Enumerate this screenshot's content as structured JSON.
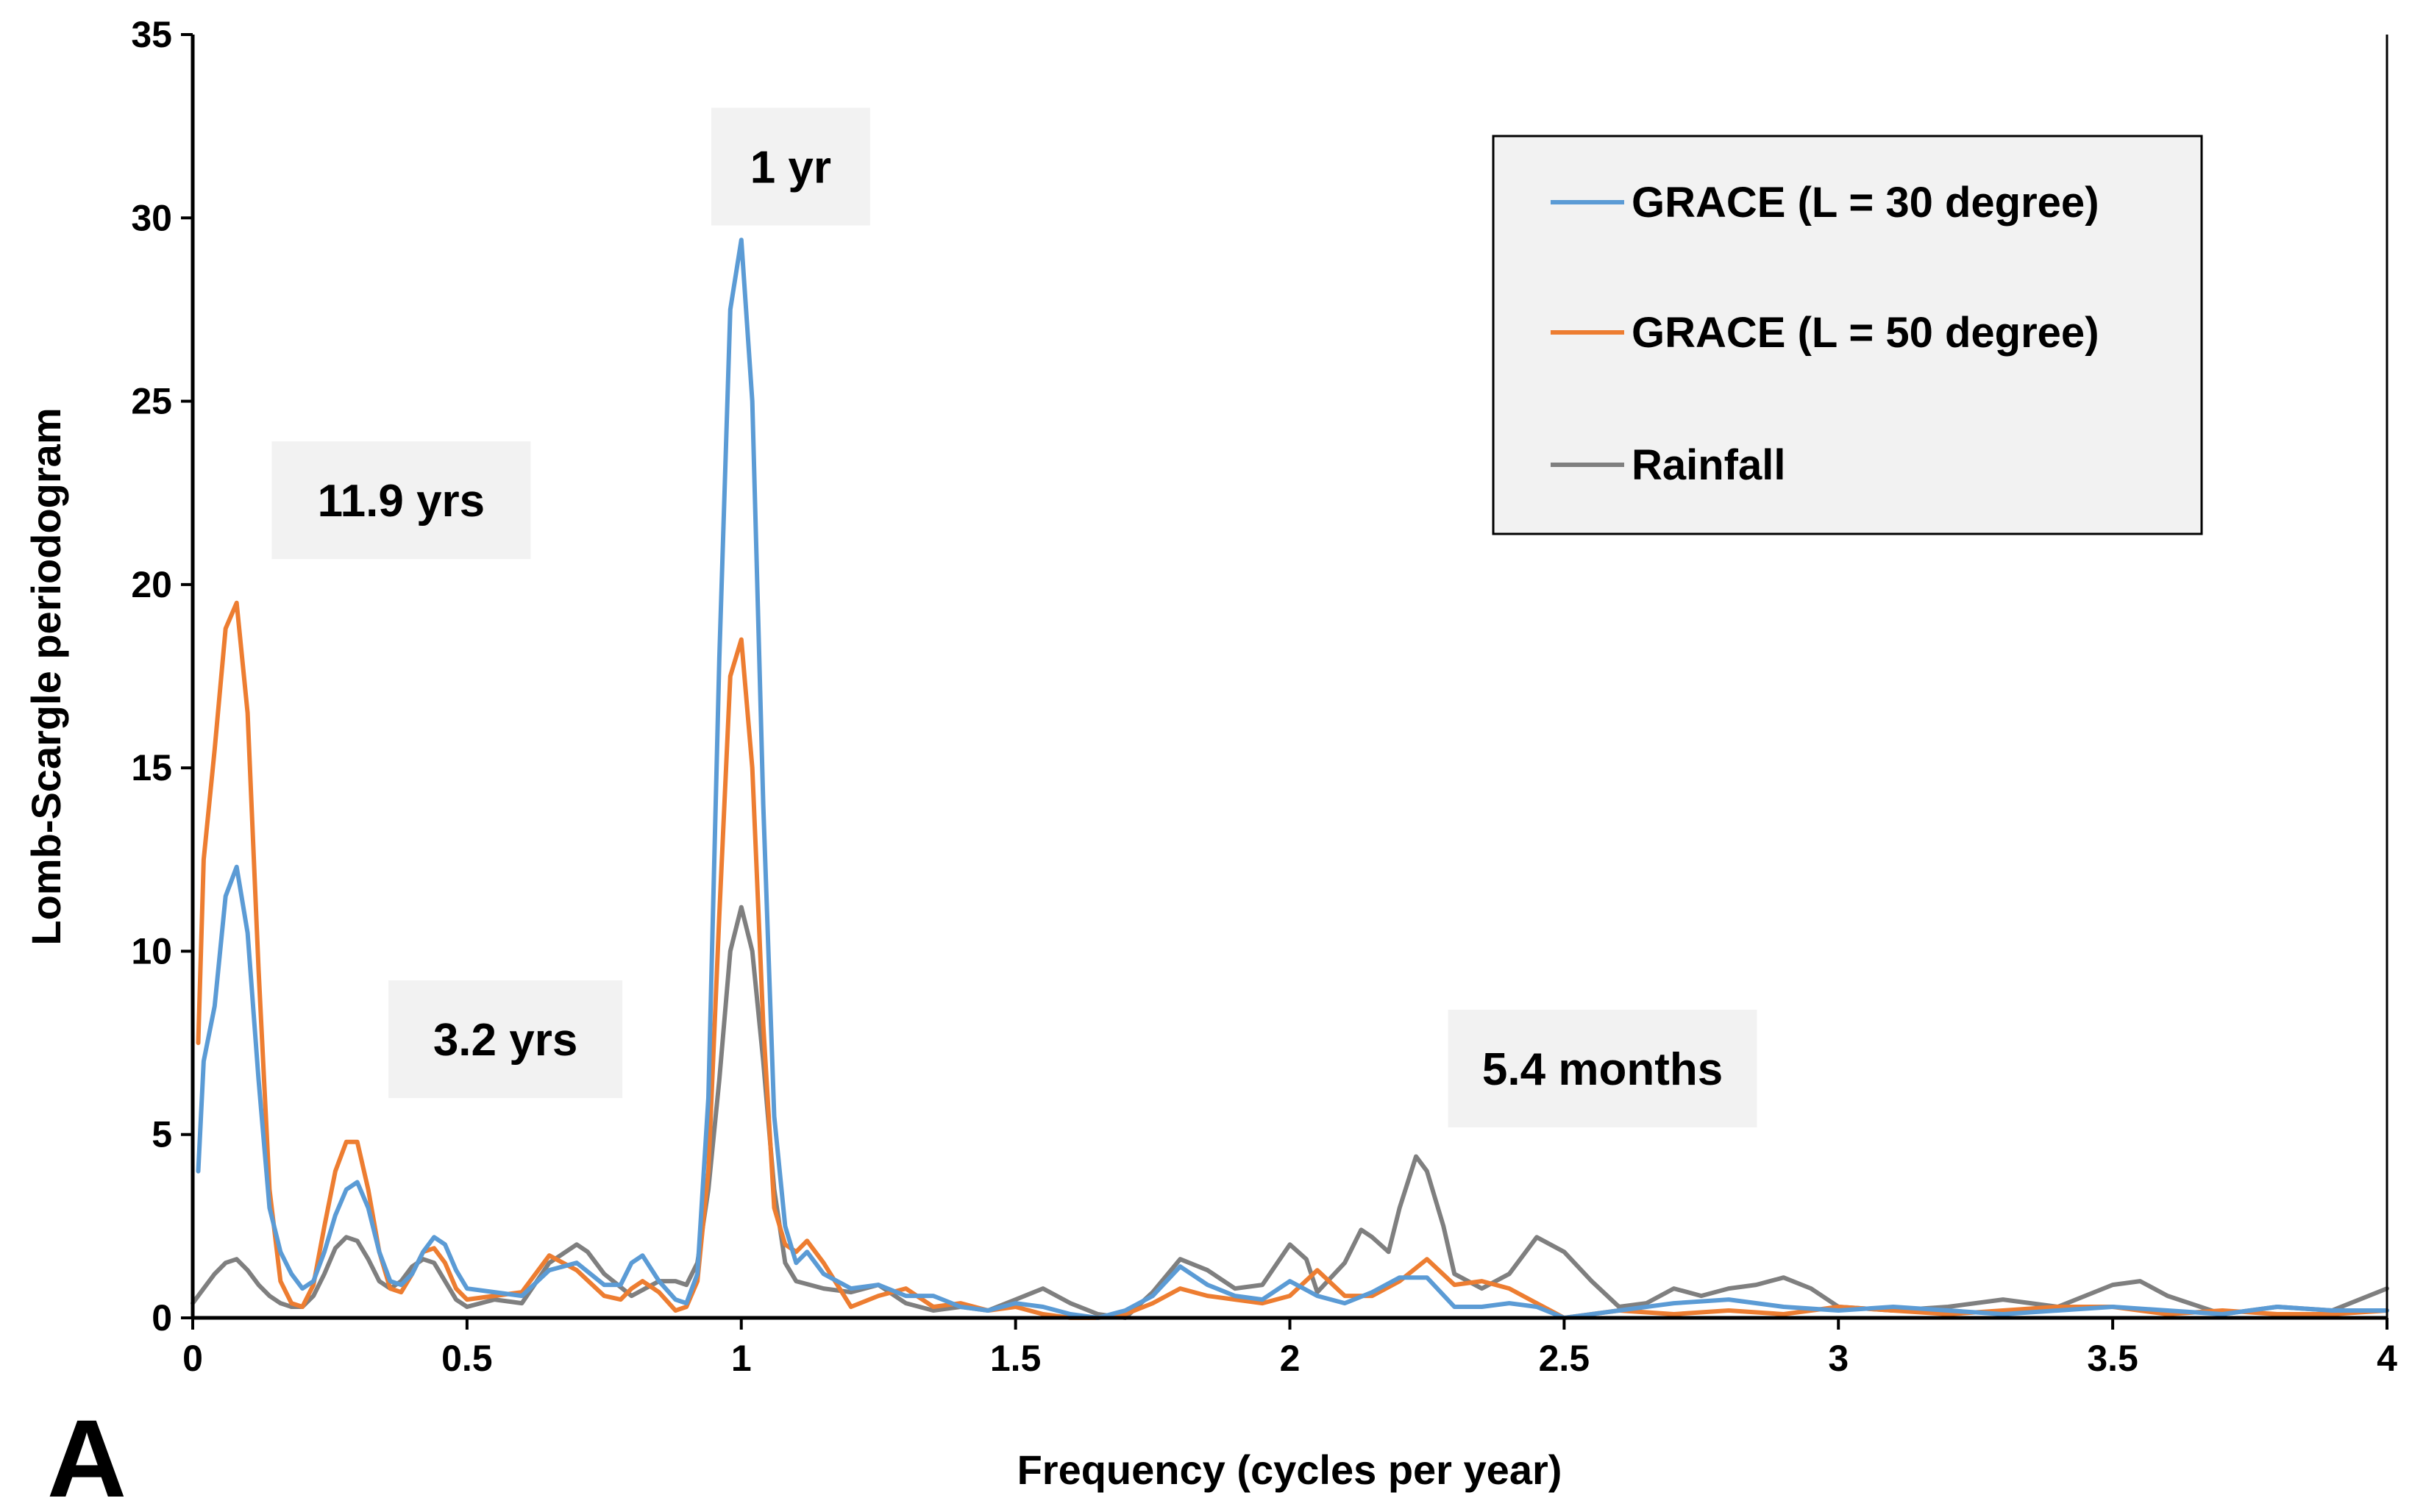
{
  "chart_data": {
    "type": "line",
    "panel_label": "A",
    "xlabel": "Frequency (cycles per year)",
    "ylabel": "Lomb-Scargle periodogram",
    "xlim": [
      0,
      4
    ],
    "ylim": [
      0,
      35
    ],
    "xticks": [
      {
        "value": 0,
        "label": "0"
      },
      {
        "value": 0.5,
        "label": "0.5"
      },
      {
        "value": 1,
        "label": "1"
      },
      {
        "value": 1.5,
        "label": "1.5"
      },
      {
        "value": 2,
        "label": "2"
      },
      {
        "value": 2.5,
        "label": "2.5"
      },
      {
        "value": 3,
        "label": "3"
      },
      {
        "value": 3.5,
        "label": "3.5"
      },
      {
        "value": 4,
        "label": "4"
      }
    ],
    "yticks": [
      {
        "value": 0,
        "label": "0"
      },
      {
        "value": 5,
        "label": "5"
      },
      {
        "value": 10,
        "label": "10"
      },
      {
        "value": 15,
        "label": "15"
      },
      {
        "value": 20,
        "label": "20"
      },
      {
        "value": 25,
        "label": "25"
      },
      {
        "value": 30,
        "label": "30"
      },
      {
        "value": 35,
        "label": "35"
      }
    ],
    "grid": false,
    "legend_position": "top-right",
    "series": [
      {
        "name": "GRACE (L = 30 degree)",
        "color": "#5B9BD5",
        "x": [
          0.01,
          0.02,
          0.04,
          0.06,
          0.08,
          0.1,
          0.12,
          0.14,
          0.16,
          0.18,
          0.2,
          0.22,
          0.24,
          0.26,
          0.28,
          0.3,
          0.32,
          0.34,
          0.36,
          0.38,
          0.4,
          0.42,
          0.44,
          0.46,
          0.48,
          0.5,
          0.55,
          0.6,
          0.65,
          0.7,
          0.75,
          0.78,
          0.8,
          0.82,
          0.85,
          0.88,
          0.9,
          0.92,
          0.94,
          0.96,
          0.98,
          1.0,
          1.02,
          1.04,
          1.06,
          1.08,
          1.1,
          1.12,
          1.15,
          1.2,
          1.25,
          1.3,
          1.35,
          1.4,
          1.45,
          1.5,
          1.55,
          1.6,
          1.65,
          1.7,
          1.75,
          1.8,
          1.85,
          1.9,
          1.95,
          2.0,
          2.05,
          2.1,
          2.15,
          2.2,
          2.25,
          2.3,
          2.35,
          2.4,
          2.45,
          2.5,
          2.6,
          2.7,
          2.8,
          2.9,
          3.0,
          3.1,
          3.2,
          3.3,
          3.4,
          3.5,
          3.6,
          3.7,
          3.8,
          3.9,
          4.0
        ],
        "values": [
          4.0,
          7.0,
          8.5,
          11.5,
          12.3,
          10.5,
          6.5,
          3.0,
          1.8,
          1.2,
          0.8,
          1.0,
          1.8,
          2.8,
          3.5,
          3.7,
          3.0,
          1.8,
          1.0,
          0.9,
          1.2,
          1.8,
          2.2,
          2.0,
          1.3,
          0.8,
          0.7,
          0.6,
          1.3,
          1.5,
          0.9,
          0.9,
          1.5,
          1.7,
          1.0,
          0.5,
          0.4,
          1.2,
          6.0,
          18.0,
          27.5,
          29.4,
          25.0,
          14.0,
          5.5,
          2.5,
          1.5,
          1.8,
          1.2,
          0.8,
          0.9,
          0.6,
          0.6,
          0.3,
          0.2,
          0.4,
          0.3,
          0.1,
          0.0,
          0.2,
          0.6,
          1.4,
          0.9,
          0.6,
          0.5,
          1.0,
          0.6,
          0.4,
          0.7,
          1.1,
          1.1,
          0.3,
          0.3,
          0.4,
          0.3,
          0.0,
          0.2,
          0.4,
          0.5,
          0.3,
          0.2,
          0.3,
          0.2,
          0.1,
          0.2,
          0.3,
          0.2,
          0.1,
          0.3,
          0.2,
          0.2
        ]
      },
      {
        "name": "GRACE (L = 50 degree)",
        "color": "#ED7D31",
        "x": [
          0.01,
          0.02,
          0.04,
          0.06,
          0.08,
          0.1,
          0.12,
          0.14,
          0.16,
          0.18,
          0.2,
          0.22,
          0.24,
          0.26,
          0.28,
          0.3,
          0.32,
          0.34,
          0.36,
          0.38,
          0.4,
          0.42,
          0.44,
          0.46,
          0.48,
          0.5,
          0.55,
          0.6,
          0.65,
          0.7,
          0.75,
          0.78,
          0.8,
          0.82,
          0.85,
          0.88,
          0.9,
          0.92,
          0.94,
          0.96,
          0.98,
          1.0,
          1.02,
          1.04,
          1.06,
          1.08,
          1.1,
          1.12,
          1.15,
          1.2,
          1.25,
          1.3,
          1.35,
          1.4,
          1.45,
          1.5,
          1.55,
          1.6,
          1.65,
          1.7,
          1.75,
          1.8,
          1.85,
          1.9,
          1.95,
          2.0,
          2.05,
          2.1,
          2.15,
          2.2,
          2.25,
          2.3,
          2.35,
          2.4,
          2.45,
          2.5,
          2.6,
          2.7,
          2.8,
          2.9,
          3.0,
          3.1,
          3.2,
          3.3,
          3.4,
          3.5,
          3.6,
          3.7,
          3.8,
          3.9,
          4.0
        ],
        "values": [
          7.5,
          12.5,
          15.5,
          18.8,
          19.5,
          16.5,
          9.5,
          3.5,
          1.0,
          0.4,
          0.3,
          0.9,
          2.5,
          4.0,
          4.8,
          4.8,
          3.5,
          1.8,
          0.8,
          0.7,
          1.2,
          1.8,
          1.9,
          1.5,
          0.8,
          0.5,
          0.6,
          0.7,
          1.7,
          1.3,
          0.6,
          0.5,
          0.8,
          1.0,
          0.7,
          0.2,
          0.3,
          1.0,
          4.0,
          11.0,
          17.5,
          18.5,
          15.0,
          8.0,
          3.0,
          2.0,
          1.8,
          2.1,
          1.5,
          0.3,
          0.6,
          0.8,
          0.3,
          0.4,
          0.2,
          0.3,
          0.1,
          0.0,
          0.0,
          0.1,
          0.4,
          0.8,
          0.6,
          0.5,
          0.4,
          0.6,
          1.3,
          0.6,
          0.6,
          1.0,
          1.6,
          0.9,
          1.0,
          0.8,
          0.4,
          0.0,
          0.2,
          0.1,
          0.2,
          0.1,
          0.3,
          0.2,
          0.1,
          0.2,
          0.3,
          0.3,
          0.1,
          0.2,
          0.1,
          0.1,
          0.2
        ]
      },
      {
        "name": "Rainfall",
        "color": "#7F7F7F",
        "x": [
          0.0,
          0.02,
          0.04,
          0.06,
          0.08,
          0.1,
          0.12,
          0.14,
          0.16,
          0.18,
          0.2,
          0.22,
          0.24,
          0.26,
          0.28,
          0.3,
          0.32,
          0.34,
          0.36,
          0.38,
          0.4,
          0.42,
          0.44,
          0.46,
          0.48,
          0.5,
          0.55,
          0.6,
          0.65,
          0.7,
          0.72,
          0.75,
          0.8,
          0.85,
          0.88,
          0.9,
          0.92,
          0.94,
          0.96,
          0.98,
          1.0,
          1.02,
          1.04,
          1.06,
          1.08,
          1.1,
          1.15,
          1.2,
          1.25,
          1.3,
          1.35,
          1.4,
          1.45,
          1.5,
          1.55,
          1.6,
          1.65,
          1.7,
          1.75,
          1.8,
          1.85,
          1.9,
          1.95,
          2.0,
          2.03,
          2.05,
          2.1,
          2.13,
          2.15,
          2.18,
          2.2,
          2.23,
          2.25,
          2.28,
          2.3,
          2.35,
          2.4,
          2.45,
          2.5,
          2.55,
          2.6,
          2.65,
          2.7,
          2.75,
          2.8,
          2.85,
          2.9,
          2.95,
          3.0,
          3.1,
          3.2,
          3.3,
          3.4,
          3.5,
          3.55,
          3.6,
          3.7,
          3.8,
          3.9,
          4.0
        ],
        "values": [
          0.4,
          0.8,
          1.2,
          1.5,
          1.6,
          1.3,
          0.9,
          0.6,
          0.4,
          0.3,
          0.3,
          0.6,
          1.2,
          1.9,
          2.2,
          2.1,
          1.6,
          1.0,
          0.8,
          1.0,
          1.4,
          1.6,
          1.5,
          1.0,
          0.5,
          0.3,
          0.5,
          0.4,
          1.5,
          2.0,
          1.8,
          1.2,
          0.6,
          1.0,
          1.0,
          0.9,
          1.5,
          3.5,
          6.5,
          10.0,
          11.2,
          10.0,
          7.0,
          3.5,
          1.5,
          1.0,
          0.8,
          0.7,
          0.9,
          0.4,
          0.2,
          0.3,
          0.2,
          0.5,
          0.8,
          0.4,
          0.1,
          0.0,
          0.7,
          1.6,
          1.3,
          0.8,
          0.9,
          2.0,
          1.6,
          0.7,
          1.5,
          2.4,
          2.2,
          1.8,
          3.0,
          4.4,
          4.0,
          2.5,
          1.2,
          0.8,
          1.2,
          2.2,
          1.8,
          1.0,
          0.3,
          0.4,
          0.8,
          0.6,
          0.8,
          0.9,
          1.1,
          0.8,
          0.3,
          0.2,
          0.3,
          0.5,
          0.3,
          0.9,
          1.0,
          0.6,
          0.1,
          0.3,
          0.2,
          0.8
        ]
      }
    ],
    "annotations": [
      {
        "text": "11.9 yrs",
        "x": 0.38,
        "y": 22.3
      },
      {
        "text": "3.2 yrs",
        "x": 0.57,
        "y": 7.6
      },
      {
        "text": "1 yr",
        "x": 1.09,
        "y": 31.4
      },
      {
        "text": "5.4 months",
        "x": 2.57,
        "y": 6.8
      }
    ]
  }
}
